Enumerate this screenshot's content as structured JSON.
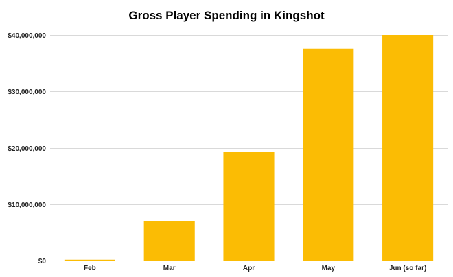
{
  "chart_data": {
    "type": "bar",
    "title": "Gross Player Spending in Kingshot",
    "xlabel": "",
    "ylabel": "",
    "categories": [
      "Feb",
      "Mar",
      "Apr",
      "May",
      "Jun (so far)"
    ],
    "values": [
      150000,
      7000000,
      19300000,
      37600000,
      40000000
    ],
    "ylim": [
      0,
      40000000
    ],
    "yticks": [
      0,
      10000000,
      20000000,
      30000000,
      40000000
    ],
    "ytick_labels": [
      "$0",
      "$10,000,000",
      "$20,000,000",
      "$30,000,000",
      "$40,000,000"
    ],
    "grid": true,
    "legend": "none",
    "bar_color": "#fbbc04"
  }
}
